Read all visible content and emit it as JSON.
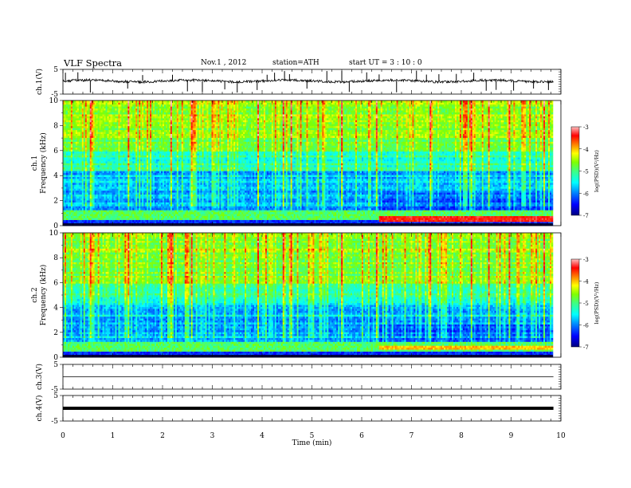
{
  "header": {
    "title": "VLF  Spectra",
    "date": "Nov.1  , 2012",
    "station": "station=ATH",
    "start": "start  UT =   3  : 10 : 0"
  },
  "chart_data": [
    {
      "type": "line",
      "name": "ch1-waveform",
      "ylabel": "ch.1(V)",
      "ylim": [
        -5,
        5
      ],
      "y_ticks": [
        "5",
        "-5"
      ],
      "xlim": [
        0,
        10
      ],
      "description_values": {
        "baseline_V": 0.3,
        "noise_amplitude_V": 1.0,
        "spike_max_V": -4.5
      },
      "spikes_min": [
        0.05,
        0.3,
        0.55,
        1.3,
        1.6,
        2.2,
        2.5,
        2.8,
        3.25,
        3.5,
        3.9,
        4.1,
        4.25,
        4.45,
        4.55,
        4.9,
        5.3,
        5.6,
        5.75,
        6.1,
        6.35,
        6.7,
        7.1,
        7.3,
        7.55,
        7.9,
        8.25,
        8.5,
        8.7,
        9.05,
        9.45,
        9.75
      ]
    },
    {
      "type": "heatmap",
      "name": "ch1-spectrogram",
      "ylabel": "ch.1\nFrequency (kHz)",
      "y_ticks": [
        "0",
        "2",
        "4",
        "6",
        "8",
        "10"
      ],
      "ylim": [
        0,
        10
      ],
      "xlim": [
        0,
        9.8
      ],
      "colorbar": {
        "label": "log(PSD)(V²/Hz)",
        "ticks": [
          "-3",
          "-4",
          "-5",
          "-6",
          "-7"
        ],
        "range": [
          -7,
          -3
        ]
      },
      "colors": [
        "#000080",
        "#0000ff",
        "#0080ff",
        "#00ffff",
        "#40ff80",
        "#80ff00",
        "#ffff00",
        "#ff8000",
        "#ff0000",
        "#ffb0b0"
      ],
      "features": "broadband vertical sferics (yellow/red) across 0-10 kHz; blue band 1.5-4 kHz; strong red tone near 0.4 kHz after 6.3 min"
    },
    {
      "type": "heatmap",
      "name": "ch2-spectrogram",
      "ylabel": "ch.2\nFrequency (kHz)",
      "y_ticks": [
        "0",
        "2",
        "4",
        "6",
        "8",
        "10"
      ],
      "ylim": [
        0,
        10
      ],
      "xlim": [
        0,
        9.8
      ],
      "colorbar": {
        "label": "log(PSD)(V²/Hz)",
        "ticks": [
          "-3",
          "-4",
          "-5",
          "-6",
          "-7"
        ],
        "range": [
          -7,
          -3
        ]
      }
    },
    {
      "type": "line",
      "name": "ch3-waveform",
      "ylabel": "ch.3(V)",
      "ylim": [
        -5,
        5
      ],
      "y_ticks": [
        "5",
        "-5"
      ],
      "xlim": [
        0,
        10
      ],
      "description_values": {
        "level_V": 0.0
      }
    },
    {
      "type": "line",
      "name": "ch4-waveform",
      "ylabel": "ch.4(V)",
      "ylim": [
        -5,
        5
      ],
      "y_ticks": [
        "5",
        "-5"
      ],
      "xlim": [
        0,
        10
      ],
      "description_values": {
        "level_V": 0.0
      }
    }
  ],
  "xaxis": {
    "label": "Time  (min)",
    "ticks": [
      "0",
      "1",
      "2",
      "3",
      "4",
      "5",
      "6",
      "7",
      "8",
      "9",
      "10"
    ]
  }
}
